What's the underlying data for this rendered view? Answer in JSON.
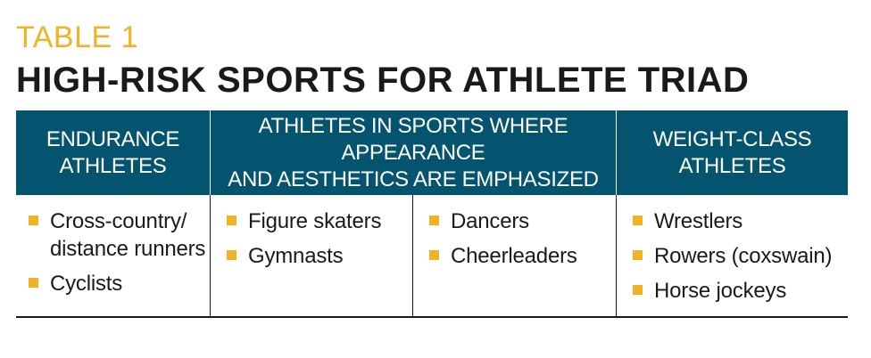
{
  "label": "TABLE 1",
  "title": "HIGH-RISK SPORTS FOR ATHLETE TRIAD",
  "colors": {
    "accent": "#f0b323",
    "header_bg": "#04536f",
    "text": "#1a1a1a"
  },
  "headers": [
    {
      "line1": "ENDURANCE",
      "line2": "ATHLETES"
    },
    {
      "line1": "ATHLETES IN SPORTS WHERE APPEARANCE",
      "line2": "AND AESTHETICS ARE EMPHASIZED"
    },
    {
      "line1": "WEIGHT-CLASS",
      "line2": "ATHLETES"
    }
  ],
  "columns": [
    {
      "items": [
        "Cross-country/ distance runners",
        "Cyclists"
      ]
    },
    {
      "items": [
        "Figure skaters",
        "Gymnasts"
      ]
    },
    {
      "items": [
        "Dancers",
        "Cheerleaders"
      ]
    },
    {
      "items": [
        "Wrestlers",
        "Rowers (coxswain)",
        "Horse jockeys"
      ]
    }
  ],
  "bullet_icon": "square-bullet-icon"
}
